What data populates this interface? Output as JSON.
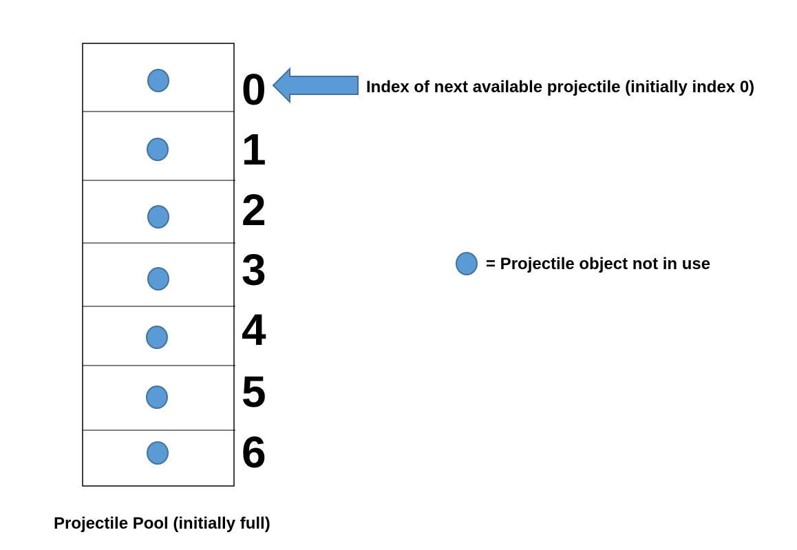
{
  "pool": {
    "caption": "Projectile Pool (initially full)",
    "indices": [
      "0",
      "1",
      "2",
      "3",
      "4",
      "5",
      "6"
    ]
  },
  "pointer": {
    "label": "Index of next available projectile (initially index 0)",
    "points_to_index": 0
  },
  "legend": {
    "label": "= Projectile object not in use"
  },
  "colors": {
    "projectile_fill": "#5b9bd5",
    "projectile_stroke": "#41719c",
    "arrow_fill": "#5b9bd5",
    "arrow_stroke": "#41719c",
    "box_stroke": "#000000"
  }
}
